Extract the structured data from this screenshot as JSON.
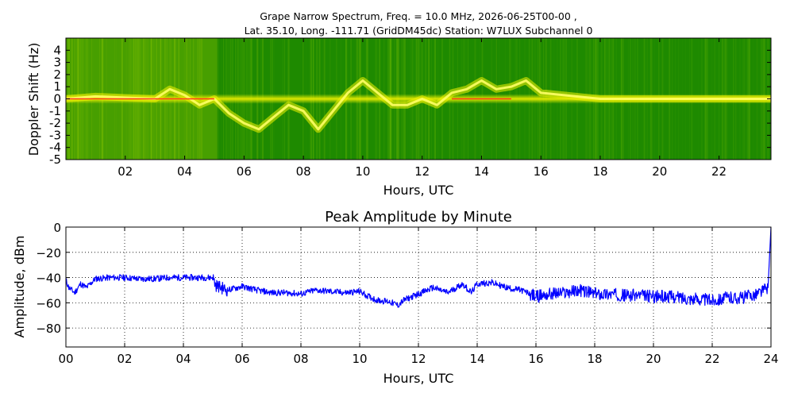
{
  "chart_data": [
    {
      "type": "heatmap",
      "title_line1": "Grape Narrow Spectrum, Freq. = 10.0 MHz, 2026-06-25T00-00 ,",
      "title_line2": "Lat.  35.10, Long. -111.71 (GridDM45dc) Station: W7LUX Subchannel 0",
      "xlabel": "Hours, UTC",
      "ylabel": "Doppler Shift (Hz)",
      "xlim": [
        0,
        23.75
      ],
      "ylim": [
        -5,
        5
      ],
      "xticks": [
        "02",
        "04",
        "06",
        "08",
        "10",
        "12",
        "14",
        "16",
        "18",
        "20",
        "22"
      ],
      "xtick_values": [
        2,
        4,
        6,
        8,
        10,
        12,
        14,
        16,
        18,
        20,
        22
      ],
      "yticks": [
        "4",
        "3",
        "2",
        "1",
        "0",
        "-1",
        "-2",
        "-3",
        "-4",
        "-5"
      ],
      "ytick_values": [
        4,
        3,
        2,
        1,
        0,
        -1,
        -2,
        -3,
        -4,
        -5
      ],
      "colors": {
        "background": "#1e8a00",
        "mid": "#7ab800",
        "bright": "#f2f200",
        "peak": "#ff3a1a"
      },
      "doppler_trace": {
        "hours": [
          0,
          1,
          2,
          3,
          3.5,
          4,
          4.5,
          5,
          5.5,
          6,
          6.5,
          7,
          7.5,
          8,
          8.5,
          9,
          9.5,
          10,
          10.5,
          11,
          11.5,
          12,
          12.5,
          13,
          13.5,
          14,
          14.5,
          15,
          15.5,
          16,
          18,
          20,
          22,
          23.75
        ],
        "hz": [
          0,
          0.2,
          0.1,
          0,
          0.8,
          0.3,
          -0.5,
          0,
          -1.2,
          -2,
          -2.5,
          -1.5,
          -0.5,
          -1,
          -2.5,
          -1,
          0.5,
          1.5,
          0.5,
          -0.5,
          -0.5,
          0,
          -0.5,
          0.5,
          0.8,
          1.5,
          0.8,
          1,
          1.5,
          0.5,
          0,
          0,
          0,
          0
        ]
      }
    },
    {
      "type": "line",
      "title": "Peak Amplitude by Minute",
      "xlabel": "Hours, UTC",
      "ylabel": "Amplitude, dBm",
      "xlim": [
        0,
        24
      ],
      "ylim": [
        -95,
        0
      ],
      "xticks": [
        "00",
        "02",
        "04",
        "06",
        "08",
        "10",
        "12",
        "14",
        "16",
        "18",
        "20",
        "22",
        "24"
      ],
      "xtick_values": [
        0,
        2,
        4,
        6,
        8,
        10,
        12,
        14,
        16,
        18,
        20,
        22,
        24
      ],
      "yticks": [
        "0",
        "−20",
        "−40",
        "−60",
        "−80"
      ],
      "ytick_values": [
        0,
        -20,
        -40,
        -60,
        -80
      ],
      "grid": true,
      "line_color": "#0000ff",
      "series": [
        {
          "x": [
            0,
            0.1,
            0.3,
            0.5,
            0.7,
            1,
            1.5,
            2,
            2.5,
            3,
            3.5,
            4,
            4.5,
            5,
            5.1,
            5.5,
            6,
            6.5,
            7,
            7.5,
            8,
            8.5,
            9,
            9.5,
            10,
            10.3,
            10.6,
            11,
            11.3,
            11.5,
            12,
            12.5,
            13,
            13.5,
            13.8,
            14,
            14.5,
            15,
            15.5,
            16,
            16.5,
            17,
            17.5,
            18,
            18.5,
            19,
            19.5,
            20,
            20.5,
            21,
            21.5,
            22,
            22.5,
            23,
            23.5,
            23.9,
            24
          ],
          "y": [
            -42,
            -48,
            -52,
            -45,
            -48,
            -41,
            -40,
            -40,
            -41,
            -41,
            -40,
            -40,
            -40,
            -40,
            -46,
            -50,
            -47,
            -50,
            -52,
            -52,
            -53,
            -50,
            -51,
            -52,
            -51,
            -55,
            -58,
            -59,
            -62,
            -58,
            -53,
            -48,
            -52,
            -45,
            -52,
            -45,
            -44,
            -48,
            -50,
            -55,
            -53,
            -52,
            -50,
            -53,
            -53,
            -54,
            -54,
            -55,
            -55,
            -56,
            -57,
            -58,
            -56,
            -56,
            -53,
            -48,
            0
          ]
        }
      ]
    }
  ]
}
